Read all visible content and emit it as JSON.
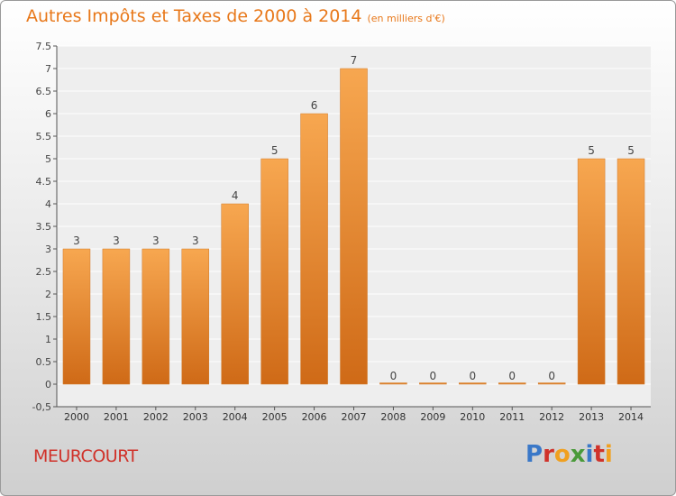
{
  "header": {
    "title": "Autres Impôts et Taxes de 2000 à 2014",
    "subtitle": "(en milliers d'€)"
  },
  "footer": {
    "city": "MEURCOURT",
    "logo_text": "Proxiti"
  },
  "colors": {
    "title": "#e8781a",
    "bar_light": "#f7a750",
    "bar_dark": "#cf6a17",
    "city": "#d0322a"
  },
  "chart_data": {
    "type": "bar",
    "categories": [
      "2000",
      "2001",
      "2002",
      "2003",
      "2004",
      "2005",
      "2006",
      "2007",
      "2008",
      "2009",
      "2010",
      "2011",
      "2012",
      "2013",
      "2014"
    ],
    "values": [
      3,
      3,
      3,
      3,
      4,
      5,
      6,
      7,
      0,
      0,
      0,
      0,
      0,
      5,
      5
    ],
    "ylim": [
      -0.5,
      7.5
    ],
    "yticks": [
      "-0,5",
      "0",
      "0.5",
      "1",
      "1.5",
      "2",
      "2.5",
      "3",
      "3.5",
      "4",
      "4.5",
      "5",
      "5.5",
      "6",
      "6.5",
      "7",
      "7.5"
    ],
    "grid": true
  }
}
